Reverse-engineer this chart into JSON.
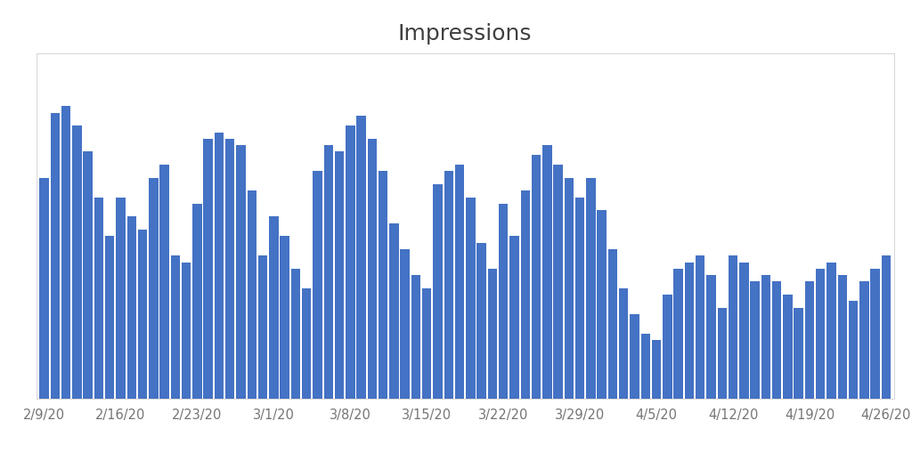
{
  "title": "Impressions",
  "bar_color": "#4472C4",
  "background_color": "#ffffff",
  "grid_color": "#c8c8c8",
  "title_fontsize": 18,
  "tick_label_color": "#757575",
  "values": [
    68,
    88,
    90,
    84,
    76,
    62,
    50,
    62,
    56,
    52,
    68,
    72,
    44,
    42,
    60,
    80,
    82,
    80,
    78,
    64,
    44,
    56,
    50,
    40,
    34,
    70,
    78,
    76,
    84,
    87,
    80,
    70,
    54,
    46,
    38,
    34,
    66,
    70,
    72,
    62,
    48,
    40,
    60,
    50,
    64,
    75,
    78,
    72,
    68,
    62,
    68,
    58,
    46,
    34,
    26,
    20,
    18,
    32,
    40,
    42,
    44,
    38,
    28,
    44,
    42,
    36,
    38,
    36,
    32,
    28,
    36,
    40,
    42,
    38,
    30,
    36,
    40,
    44
  ],
  "xtick_labels": [
    "2/9/20",
    "2/16/20",
    "2/23/20",
    "3/1/20",
    "3/8/20",
    "3/15/20",
    "3/22/20",
    "3/29/20",
    "4/5/20",
    "4/12/20",
    "4/19/20",
    "4/26/20"
  ],
  "xtick_positions": [
    0,
    7,
    14,
    21,
    28,
    35,
    42,
    49,
    56,
    63,
    70,
    77
  ]
}
